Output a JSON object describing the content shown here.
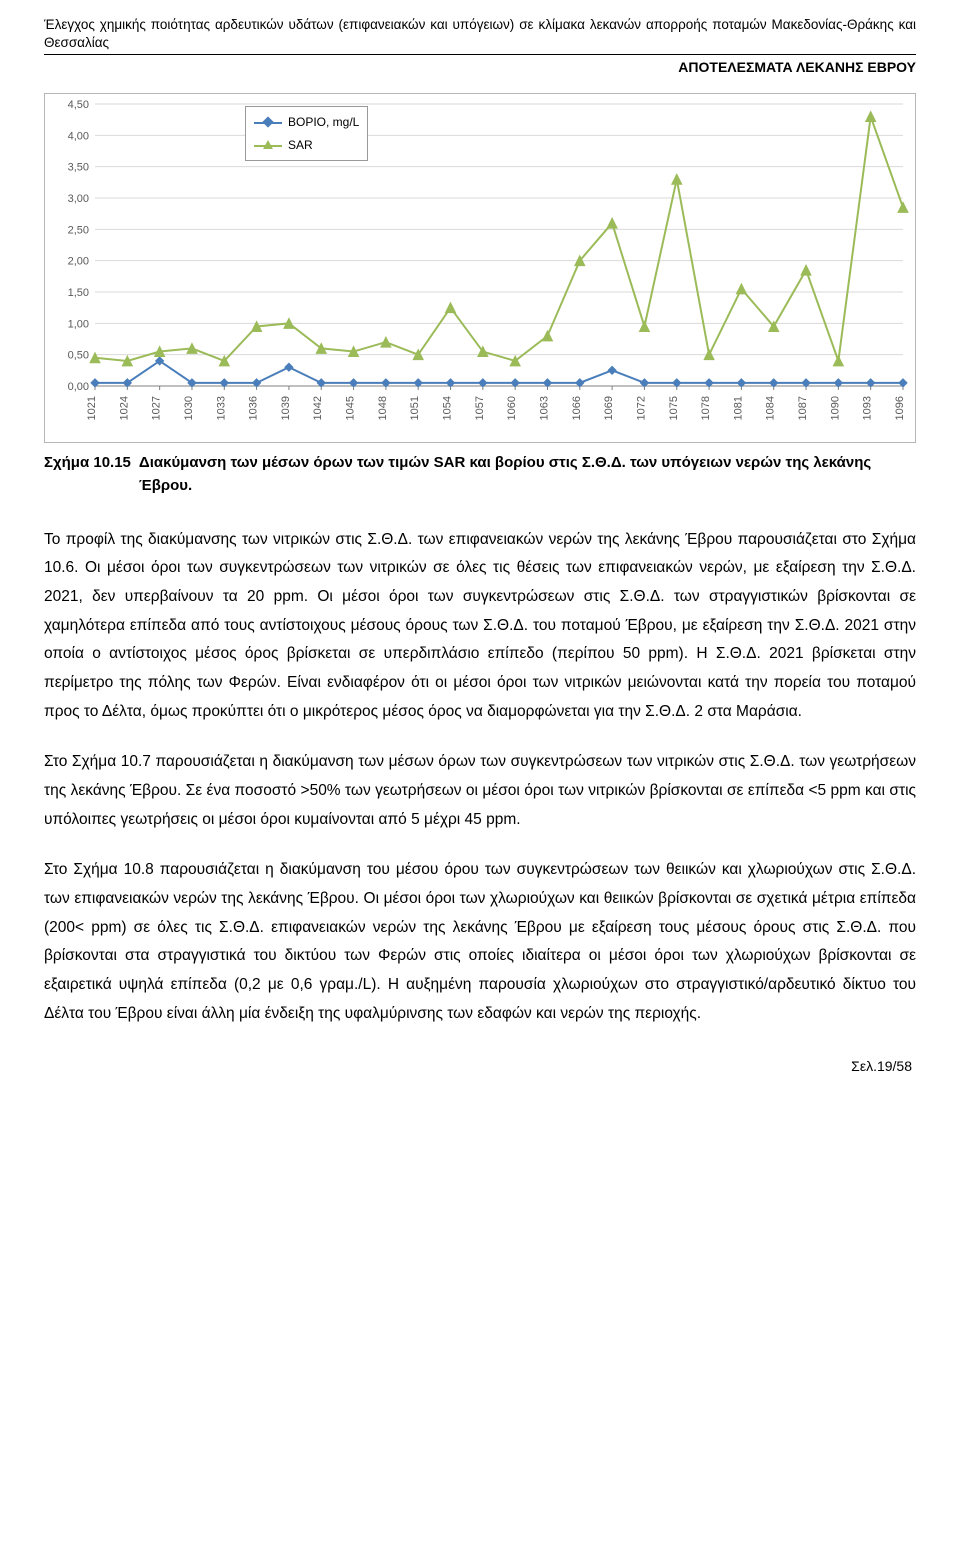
{
  "header": {
    "title_line": "Έλεγχος χημικής ποιότητας αρδευτικών υδάτων (επιφανειακών και υπόγειων) σε κλίμακα λεκανών απορροής ποταμών Μακεδονίας-Θράκης και Θεσσαλίας",
    "right_label": "ΑΠΟΤΕΛΕΣΜΑΤΑ ΛΕΚΑΝΗΣ ΕΒΡΟΥ"
  },
  "chart": {
    "type": "line",
    "background_color": "#ffffff",
    "grid_color": "#d9d9d9",
    "axis_color": "#808080",
    "y": {
      "min": 0.0,
      "max": 4.5,
      "step": 0.5,
      "labels": [
        "0,00",
        "0,50",
        "1,00",
        "1,50",
        "2,00",
        "2,50",
        "3,00",
        "3,50",
        "4,00",
        "4,50"
      ],
      "label_fontsize": 11,
      "label_color": "#595959"
    },
    "x": {
      "labels": [
        "1021",
        "1024",
        "1027",
        "1030",
        "1033",
        "1036",
        "1039",
        "1042",
        "1045",
        "1048",
        "1051",
        "1054",
        "1057",
        "1060",
        "1063",
        "1066",
        "1069",
        "1072",
        "1075",
        "1078",
        "1081",
        "1084",
        "1087",
        "1090",
        "1093",
        "1096"
      ],
      "label_fontsize": 11,
      "label_color": "#595959",
      "rotation": -90
    },
    "series": [
      {
        "name": "ΒΟΡΙΟ, mg/L",
        "color": "#4a7ebb",
        "marker": "diamond",
        "line_width": 2,
        "values": [
          0.05,
          0.05,
          0.4,
          0.05,
          0.05,
          0.05,
          0.3,
          0.05,
          0.05,
          0.05,
          0.05,
          0.05,
          0.05,
          0.05,
          0.05,
          0.05,
          0.25,
          0.05,
          0.05,
          0.05,
          0.05,
          0.05,
          0.05,
          0.05,
          0.05,
          0.05
        ]
      },
      {
        "name": "SAR",
        "color": "#9bbb59",
        "marker": "triangle",
        "line_width": 2,
        "values": [
          0.45,
          0.4,
          0.55,
          0.6,
          0.4,
          0.95,
          1.0,
          0.6,
          0.55,
          0.7,
          0.5,
          1.25,
          0.55,
          0.4,
          0.8,
          2.0,
          2.6,
          0.95,
          3.3,
          0.5,
          1.55,
          0.95,
          1.85,
          0.4,
          4.3,
          2.85
        ]
      }
    ],
    "legend_position": "top-left"
  },
  "caption": {
    "label": "Σχήμα 10.15",
    "text": "Διακύμανση των μέσων όρων των τιμών SAR και βορίου στις Σ.Θ.Δ. των υπόγειων νερών της λεκάνης Έβρου."
  },
  "paragraphs": [
    "Το προφίλ της διακύμανσης των νιτρικών στις Σ.Θ.Δ. των επιφανειακών νερών της λεκάνης Έβρου παρουσιάζεται στο Σχήμα 10.6. Οι μέσοι όροι των συγκεντρώσεων των νιτρικών σε όλες τις θέσεις των επιφανειακών νερών, με εξαίρεση την Σ.Θ.Δ. 2021, δεν υπερβαίνουν τα 20 ppm. Οι μέσοι όροι των συγκεντρώσεων στις Σ.Θ.Δ. των στραγγιστικών βρίσκονται σε χαμηλότερα επίπεδα από τους αντίστοιχους μέσους όρους των Σ.Θ.Δ. του ποταμού Έβρου, με εξαίρεση την Σ.Θ.Δ. 2021 στην οποία ο αντίστοιχος μέσος όρος βρίσκεται σε υπερδιπλάσιο επίπεδο (περίπου 50 ppm). Η Σ.Θ.Δ. 2021 βρίσκεται στην περίμετρο της πόλης των Φερών. Είναι ενδιαφέρον ότι οι μέσοι όροι των νιτρικών μειώνονται κατά την πορεία του ποταμού προς το Δέλτα, όμως προκύπτει ότι ο μικρότερος μέσος όρος να διαμορφώνεται για την Σ.Θ.Δ. 2 στα Μαράσια.",
    "Στο Σχήμα 10.7 παρουσιάζεται η διακύμανση των μέσων όρων των συγκεντρώσεων των νιτρικών στις Σ.Θ.Δ. των γεωτρήσεων της λεκάνης Έβρου. Σε ένα ποσοστό >50% των γεωτρήσεων οι μέσοι όροι των νιτρικών βρίσκονται σε επίπεδα <5 ppm και στις υπόλοιπες γεωτρήσεις οι μέσοι όροι κυμαίνονται από 5 μέχρι 45 ppm.",
    "Στο Σχήμα 10.8 παρουσιάζεται η διακύμανση του μέσου όρου των συγκεντρώσεων των θειικών και χλωριούχων στις Σ.Θ.Δ. των επιφανειακών νερών της λεκάνης Έβρου. Οι μέσοι όροι των χλωριούχων και θειικών βρίσκονται σε σχετικά μέτρια επίπεδα (200< ppm) σε όλες τις Σ.Θ.Δ. επιφανειακών νερών της λεκάνης Έβρου με εξαίρεση τους μέσους όρους στις Σ.Θ.Δ. που βρίσκονται στα στραγγιστικά του δικτύου των Φερών στις οποίες ιδιαίτερα οι μέσοι όροι των χλωριούχων βρίσκονται σε εξαιρετικά υψηλά επίπεδα (0,2 με 0,6 γραμ./L). Η αυξημένη παρουσία χλωριούχων στο στραγγιστικό/αρδευτικό δίκτυο του Δέλτα του Έβρου είναι άλλη μία ένδειξη της υφαλμύρινσης των εδαφών και νερών της περιοχής."
  ],
  "footer": {
    "text": "Σελ.19/58"
  }
}
